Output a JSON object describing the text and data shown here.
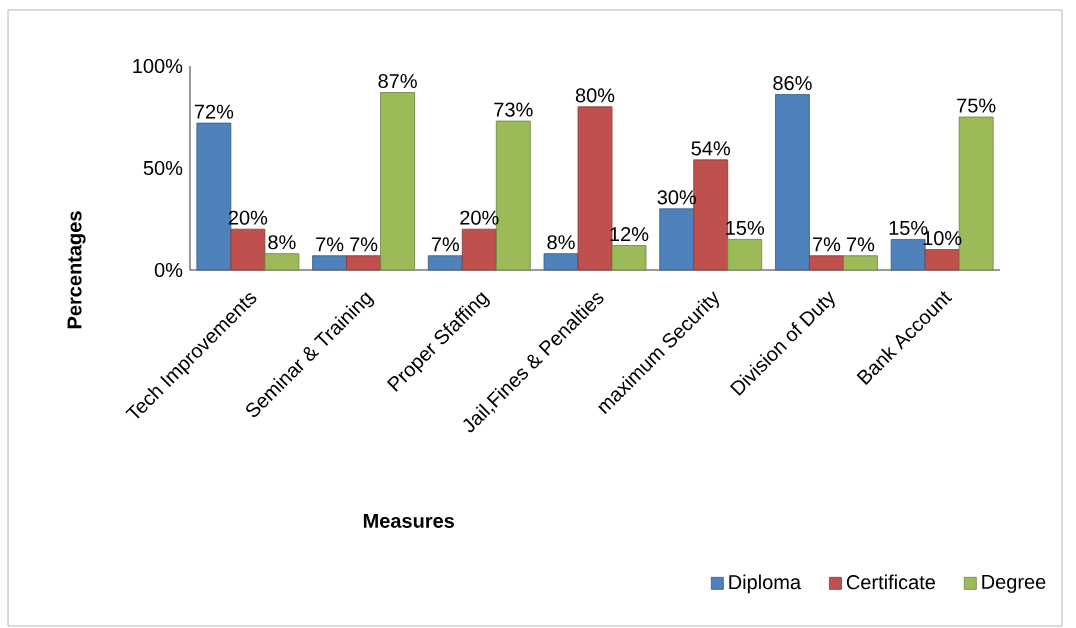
{
  "chart_data": {
    "type": "bar",
    "xlabel": "Measures",
    "ylabel": "Percentages",
    "categories": [
      "Tech Improvements",
      "Seminar & Training",
      "Proper Sfaffing",
      "Jail,Fines & Penalties",
      "maximum Security",
      "Division of Duty",
      "Bank Account"
    ],
    "series": [
      {
        "name": "Diploma",
        "color": "#4f81bd",
        "values": [
          72,
          7,
          7,
          8,
          30,
          86,
          15
        ],
        "value_labels": [
          "72%",
          "7%",
          "7%",
          "8%",
          "30%",
          "86%",
          "15%"
        ]
      },
      {
        "name": "Certificate",
        "color": "#c0504d",
        "values": [
          20,
          7,
          20,
          80,
          54,
          7,
          10
        ],
        "value_labels": [
          "20%",
          "7%",
          "20%",
          "80%",
          "54%",
          "7%",
          "10%"
        ]
      },
      {
        "name": "Degree",
        "color": "#9bbb59",
        "values": [
          8,
          87,
          73,
          12,
          15,
          7,
          75
        ],
        "value_labels": [
          "8%",
          "87%",
          "73%",
          "12%",
          "15%",
          "7%",
          "75%"
        ]
      }
    ],
    "ylim": [
      0,
      100
    ],
    "yticks": [
      {
        "value": 0,
        "label": "0%"
      },
      {
        "value": 50,
        "label": "50%"
      },
      {
        "value": 100,
        "label": "100%"
      }
    ],
    "legend": "bottom right"
  }
}
